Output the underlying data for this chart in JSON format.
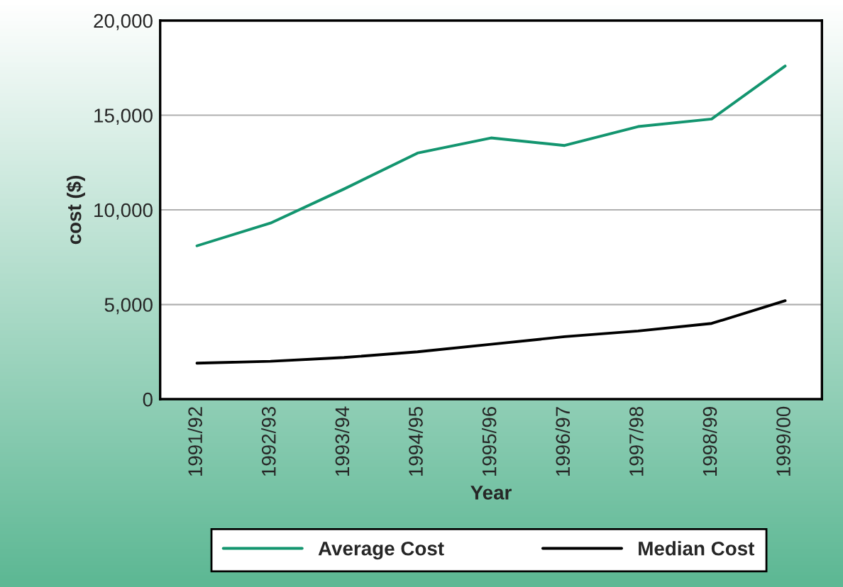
{
  "chart_data": {
    "type": "line",
    "xlabel": "Year",
    "ylabel": "cost ($)",
    "categories": [
      "1991/92",
      "1992/93",
      "1993/94",
      "1994/95",
      "1995/96",
      "1996/97",
      "1997/98",
      "1998/99",
      "1999/00"
    ],
    "series": [
      {
        "name": "Average Cost",
        "color": "#13956f",
        "values": [
          8100,
          9300,
          11100,
          13000,
          13800,
          13400,
          14400,
          14800,
          17600
        ]
      },
      {
        "name": "Median Cost",
        "color": "#000000",
        "values": [
          1900,
          2000,
          2200,
          2500,
          2900,
          3300,
          3600,
          4000,
          5200
        ]
      }
    ],
    "ylim": [
      0,
      20000
    ],
    "yticks": [
      {
        "value": 0,
        "label": "0"
      },
      {
        "value": 5000,
        "label": "5,000"
      },
      {
        "value": 10000,
        "label": "10,000"
      },
      {
        "value": 15000,
        "label": "15,000"
      },
      {
        "value": 20000,
        "label": "20,000"
      }
    ],
    "grid": "y",
    "legend": "bottom",
    "marker": "none",
    "line_style": "solid"
  }
}
